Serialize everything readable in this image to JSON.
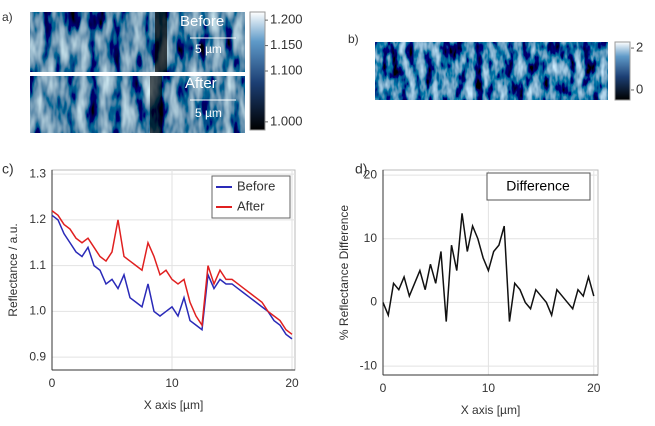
{
  "panel_a": {
    "label": "a)",
    "before_label": "Before",
    "after_label": "After",
    "scale_bar": "5 µm",
    "colorbar_lim": [
      0.984,
      1.216
    ],
    "colorbar_ticks": [
      {
        "value": 1.2,
        "label": "1.200"
      },
      {
        "value": 1.15,
        "label": "1.150"
      },
      {
        "value": 1.1,
        "label": "1.100"
      },
      {
        "value": 1.0,
        "label": "1.000"
      }
    ]
  },
  "panel_b": {
    "label": "b)",
    "colorbar_lim": [
      -0.48,
      2.29
    ],
    "colorbar_ticks": [
      2,
      0
    ]
  },
  "chart_data": [
    {
      "type": "line",
      "panel_label": "c)",
      "xlabel": "X axis [µm]",
      "ylabel": "Reflectance / a.u.",
      "xlim": [
        0,
        20.25
      ],
      "ylim": [
        0.872,
        1.309
      ],
      "xticks": [
        0,
        10,
        20
      ],
      "yticks": [
        0.9,
        {
          "value": 1,
          "label": "1.0"
        },
        1.1,
        1.2,
        1.3
      ],
      "grid": true,
      "legend": "upper right",
      "x": [
        0,
        0.5,
        1,
        1.5,
        2,
        2.5,
        3,
        3.5,
        4,
        4.5,
        5,
        5.5,
        6,
        6.5,
        7,
        7.5,
        8,
        8.5,
        9,
        9.5,
        10,
        10.5,
        11,
        11.5,
        12,
        12.5,
        13,
        13.5,
        14,
        14.5,
        15,
        15.5,
        16,
        16.5,
        17,
        17.5,
        18,
        18.5,
        19,
        19.5,
        20
      ],
      "series": [
        {
          "name": "Before",
          "color": "#2a2ab8",
          "values": [
            1.21,
            1.2,
            1.17,
            1.15,
            1.13,
            1.12,
            1.14,
            1.1,
            1.09,
            1.06,
            1.07,
            1.05,
            1.08,
            1.03,
            1.02,
            1.01,
            1.06,
            1.0,
            0.99,
            1.0,
            1.01,
            0.99,
            1.03,
            0.98,
            0.97,
            0.96,
            1.08,
            1.05,
            1.07,
            1.06,
            1.06,
            1.05,
            1.04,
            1.03,
            1.02,
            1.01,
            1.0,
            0.98,
            0.97,
            0.95,
            0.94
          ]
        },
        {
          "name": "After",
          "color": "#e02020",
          "values": [
            1.22,
            1.21,
            1.19,
            1.18,
            1.16,
            1.15,
            1.16,
            1.14,
            1.12,
            1.11,
            1.13,
            1.2,
            1.12,
            1.11,
            1.1,
            1.09,
            1.15,
            1.12,
            1.08,
            1.09,
            1.07,
            1.06,
            1.07,
            1.02,
            0.99,
            0.97,
            1.1,
            1.06,
            1.09,
            1.07,
            1.07,
            1.06,
            1.05,
            1.04,
            1.03,
            1.02,
            1.0,
            0.99,
            0.98,
            0.96,
            0.95
          ]
        }
      ]
    },
    {
      "type": "line",
      "panel_label": "d)",
      "xlabel": "X axis [µm]",
      "ylabel": "% Reflectance Difference",
      "annotation": "Difference",
      "xlim": [
        0,
        20.4
      ],
      "ylim": [
        -11.4,
        20.8
      ],
      "xticks": [
        0,
        10,
        20
      ],
      "yticks": [
        -10,
        0,
        10,
        20
      ],
      "grid": true,
      "x": [
        0,
        0.5,
        1,
        1.5,
        2,
        2.5,
        3,
        3.5,
        4,
        4.5,
        5,
        5.5,
        6,
        6.5,
        7,
        7.5,
        8,
        8.5,
        9,
        9.5,
        10,
        10.5,
        11,
        11.5,
        12,
        12.5,
        13,
        13.5,
        14,
        14.5,
        15,
        15.5,
        16,
        16.5,
        17,
        17.5,
        18,
        18.5,
        19,
        19.5,
        20
      ],
      "color": "#111111",
      "values": [
        0,
        -2,
        3,
        2,
        4,
        1,
        3,
        5,
        2,
        6,
        3,
        8,
        -3,
        9,
        5,
        14,
        8,
        12,
        10,
        7,
        5,
        8,
        9,
        12,
        -3,
        3,
        2,
        0,
        -1,
        2,
        1,
        0,
        -2,
        2,
        1,
        0,
        -1,
        2,
        1,
        4,
        1
      ]
    }
  ]
}
